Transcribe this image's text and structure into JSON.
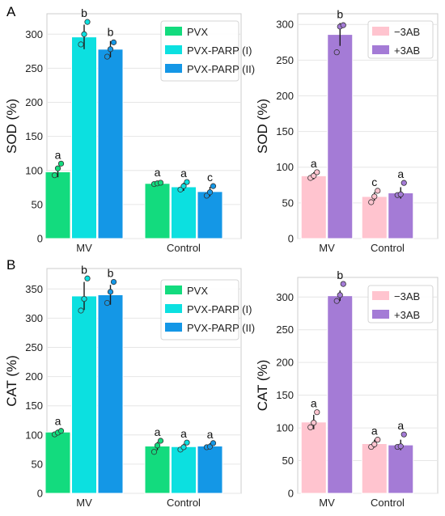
{
  "figure": {
    "panel_labels": [
      "A",
      "B"
    ]
  },
  "colors": {
    "PVX": "#13DB7E",
    "PVX-PARP (I)": "#0CE0E0",
    "PVX-PARP (II)": "#1497E6",
    "−3AB": "#FFC4CF",
    "+3AB": "#A47BD6",
    "grid": "#E6E6E6",
    "axis": "#CCCCCC"
  },
  "chart_data": [
    {
      "type": "bar",
      "panel": "A",
      "ylabel": "SOD (%)",
      "xlabel": "",
      "ylim": [
        0,
        330
      ],
      "yticks": [
        0,
        50,
        100,
        150,
        200,
        250,
        300
      ],
      "grid": "horizontal",
      "legend_position": "top-right",
      "categories": [
        "MV",
        "Control"
      ],
      "series": [
        {
          "name": "PVX",
          "values": [
            98,
            81
          ],
          "errors": [
            8,
            3
          ],
          "letters": [
            "a",
            "a"
          ],
          "points": [
            [
              93,
              103,
              110
            ],
            [
              80,
              81,
              82
            ]
          ]
        },
        {
          "name": "PVX-PARP (I)",
          "values": [
            296,
            76
          ],
          "errors": [
            18,
            6
          ],
          "letters": [
            "b",
            "a"
          ],
          "points": [
            [
              285,
              300,
              318
            ],
            [
              72,
              77,
              83
            ]
          ]
        },
        {
          "name": "PVX-PARP (II)",
          "values": [
            278,
            69
          ],
          "errors": [
            12,
            7
          ],
          "letters": [
            "b",
            "c"
          ],
          "points": [
            [
              267,
              278,
              288
            ],
            [
              63,
              68,
              77
            ]
          ]
        }
      ]
    },
    {
      "type": "bar",
      "panel": "A",
      "ylabel": "SOD (%)",
      "xlabel": "",
      "ylim": [
        0,
        315
      ],
      "yticks": [
        0,
        50,
        100,
        150,
        200,
        250,
        300
      ],
      "grid": "horizontal",
      "legend_position": "top-right",
      "categories": [
        "MV",
        "Control"
      ],
      "series": [
        {
          "name": "−3AB",
          "values": [
            88,
            59
          ],
          "errors": [
            5,
            6
          ],
          "letters": [
            "a",
            "c"
          ],
          "points": [
            [
              85,
              88,
              93
            ],
            [
              51,
              59,
              67
            ]
          ]
        },
        {
          "name": "+3AB",
          "values": [
            286,
            64
          ],
          "errors": [
            16,
            8
          ],
          "letters": [
            "b",
            "a"
          ],
          "points": [
            [
              261,
              297,
              299
            ],
            [
              61,
              62,
              78
            ]
          ]
        }
      ]
    },
    {
      "type": "bar",
      "panel": "B",
      "ylabel": "CAT (%)",
      "xlabel": "",
      "ylim": [
        0,
        385
      ],
      "yticks": [
        0,
        50,
        100,
        150,
        200,
        250,
        300,
        350
      ],
      "grid": "horizontal",
      "legend_position": "top-right",
      "categories": [
        "MV",
        "Control"
      ],
      "series": [
        {
          "name": "PVX",
          "values": [
            105,
            81
          ],
          "errors": [
            4,
            7
          ],
          "letters": [
            "a",
            "a"
          ],
          "points": [
            [
              101,
              104,
              107
            ],
            [
              71,
              82,
              90
            ]
          ]
        },
        {
          "name": "PVX-PARP (I)",
          "values": [
            338,
            80
          ],
          "errors": [
            24,
            5
          ],
          "letters": [
            "b",
            "a"
          ],
          "points": [
            [
              313,
              333,
              368
            ],
            [
              75,
              79,
              87
            ]
          ]
        },
        {
          "name": "PVX-PARP (II)",
          "values": [
            340,
            81
          ],
          "errors": [
            17,
            5
          ],
          "letters": [
            "b",
            "a"
          ],
          "points": [
            [
              326,
              345,
              362
            ],
            [
              79,
              80,
              86
            ]
          ]
        }
      ]
    },
    {
      "type": "bar",
      "panel": "B",
      "ylabel": "CAT (%)",
      "xlabel": "",
      "ylim": [
        0,
        330
      ],
      "yticks": [
        0,
        50,
        100,
        150,
        200,
        250,
        300
      ],
      "grid": "horizontal",
      "legend_position": "top-right",
      "categories": [
        "MV",
        "Control"
      ],
      "series": [
        {
          "name": "−3AB",
          "values": [
            109,
            76
          ],
          "errors": [
            11,
            6
          ],
          "letters": [
            "a",
            "a"
          ],
          "points": [
            [
              101,
              108,
              124
            ],
            [
              71,
              75,
              82
            ]
          ]
        },
        {
          "name": "+3AB",
          "values": [
            302,
            74
          ],
          "errors": [
            8,
            8
          ],
          "letters": [
            "b",
            "a"
          ],
          "points": [
            [
              294,
              303,
              320
            ],
            [
              71,
              72,
              90
            ]
          ]
        }
      ]
    }
  ]
}
